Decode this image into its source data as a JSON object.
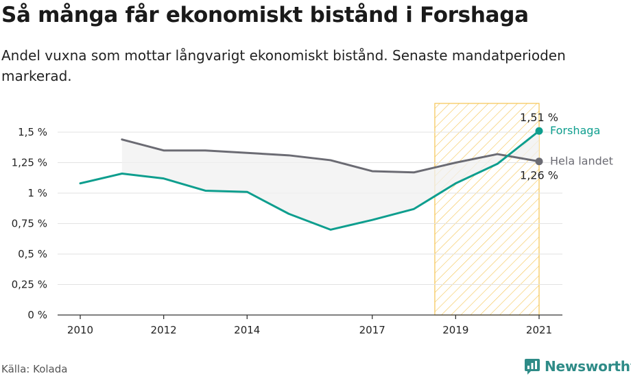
{
  "title": "Så många får ekonomiskt bistånd i Forshaga",
  "subtitle": "Andel vuxna som mottar långvarigt ekonomiskt bistånd. Senaste mandatperioden markerad.",
  "source": "Källa: Kolada",
  "brand": "Newsworthy",
  "colors": {
    "forshaga": "#0e9e8e",
    "hela_landet": "#6b6b73",
    "highlight_stroke": "#f5c452",
    "area_fill": "#f0f0f0"
  },
  "chart_data": {
    "type": "line",
    "x": [
      2010,
      2011,
      2012,
      2013,
      2014,
      2015,
      2016,
      2017,
      2018,
      2019,
      2020,
      2021
    ],
    "x_ticks": [
      2010,
      2012,
      2014,
      2017,
      2019,
      2021
    ],
    "x_tick_labels": [
      "2010",
      "2012",
      "2014",
      "2017",
      "2019",
      "2021"
    ],
    "xlim": [
      2010,
      2021
    ],
    "ylim": [
      0,
      1.5
    ],
    "y_ticks": [
      0,
      0.25,
      0.5,
      0.75,
      1,
      1.25,
      1.5
    ],
    "y_tick_labels": [
      "0 %",
      "0,25 %",
      "0,5 %",
      "0,75 %",
      "1 %",
      "1,25 %",
      "1,5 %"
    ],
    "grid": true,
    "highlight_period": [
      2018.5,
      2021
    ],
    "series": [
      {
        "name": "Forshaga",
        "values": [
          1.08,
          1.16,
          1.12,
          1.02,
          1.01,
          0.83,
          0.7,
          0.78,
          0.87,
          1.08,
          1.24,
          1.51
        ],
        "end_label": "1,51 %"
      },
      {
        "name": "Hela landet",
        "values": [
          null,
          1.44,
          1.35,
          1.35,
          1.33,
          1.31,
          1.27,
          1.18,
          1.17,
          1.25,
          1.32,
          1.26
        ],
        "end_label": "1,26 %"
      }
    ]
  }
}
